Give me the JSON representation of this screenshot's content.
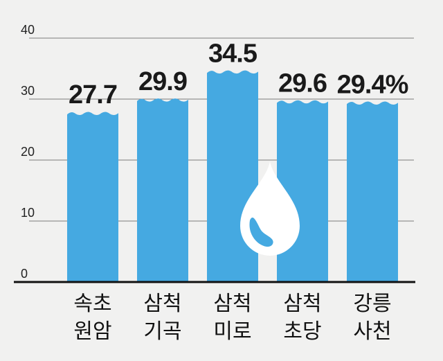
{
  "chart_data": {
    "type": "bar",
    "categories": [
      [
        "속초",
        "원암"
      ],
      [
        "삼척",
        "기곡"
      ],
      [
        "삼척",
        "미로"
      ],
      [
        "삼척",
        "초당"
      ],
      [
        "강릉",
        "사천"
      ]
    ],
    "values": [
      27.7,
      29.9,
      34.5,
      29.6,
      29.4
    ],
    "value_labels": [
      "27.7",
      "29.9",
      "34.5",
      "29.6",
      "29.4%"
    ],
    "yticks": [
      "0",
      "10",
      "20",
      "30",
      "40"
    ],
    "ylim": [
      0,
      40
    ],
    "grid": true,
    "title": "",
    "xlabel": "",
    "ylabel": "",
    "colors": {
      "bar": "#45a9e1",
      "background": "#f1f1f0",
      "grid": "#7a7a7a",
      "axis": "#111111",
      "drop": "#ffffff",
      "drop_highlight": "#45a9e1"
    },
    "decoration": "water-drop-icon"
  }
}
